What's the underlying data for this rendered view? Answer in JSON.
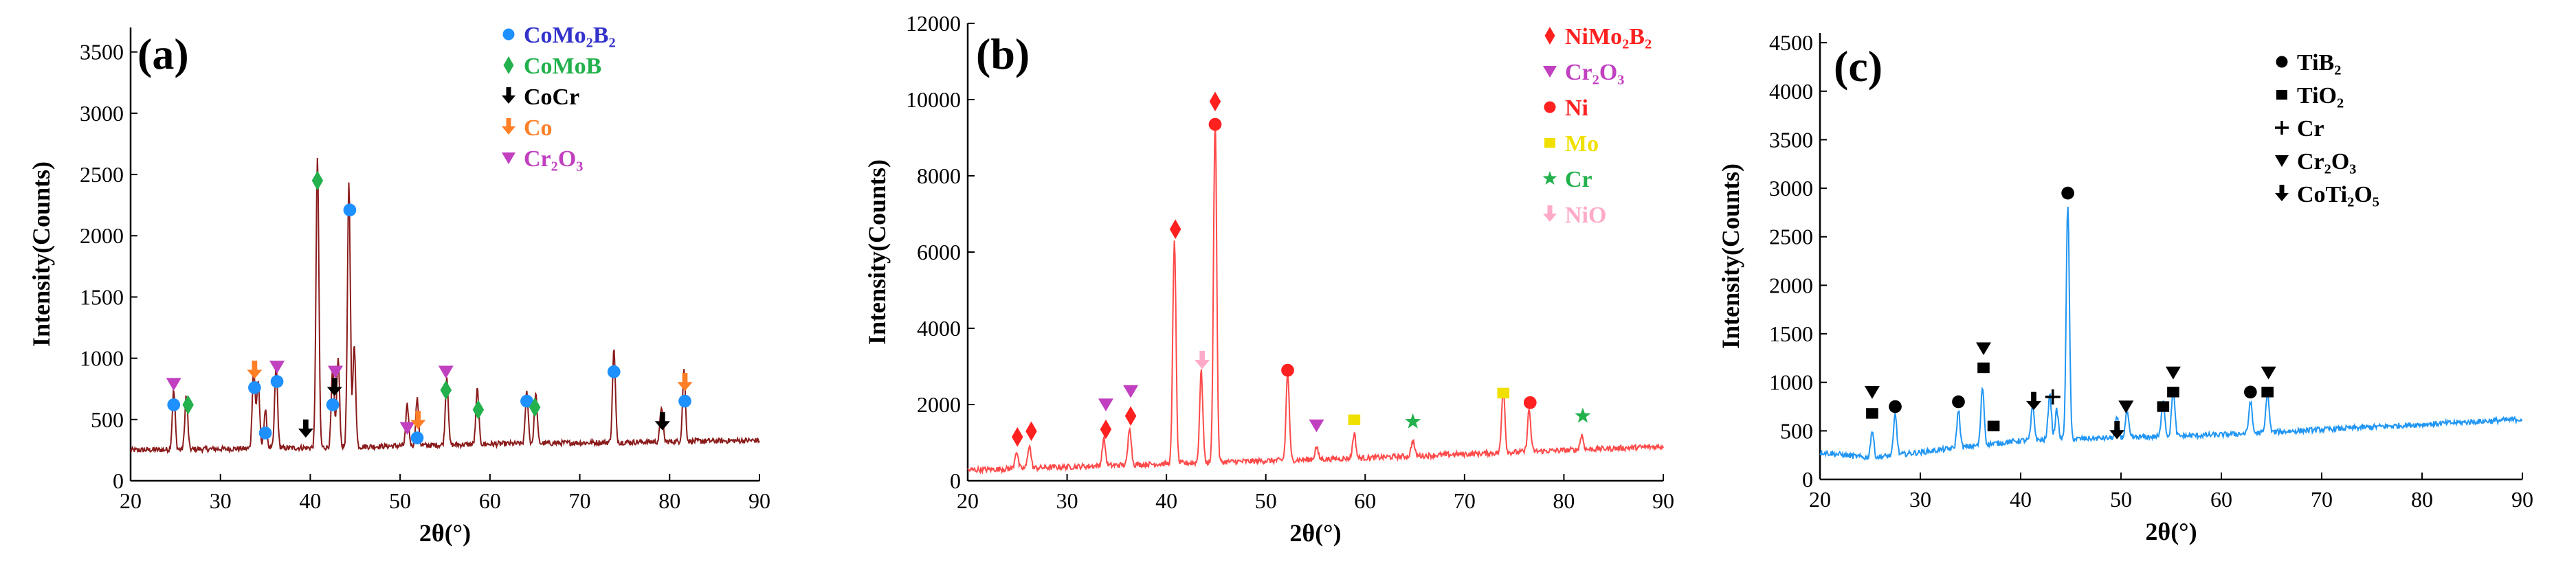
{
  "chart_data": [
    {
      "type": "line",
      "panel_label": "(a)",
      "xlabel": "2θ(°)",
      "ylabel": "Intensity(Counts)",
      "xlim": [
        20,
        90
      ],
      "ylim": [
        0,
        3700
      ],
      "xticks": [
        "20",
        "30",
        "40",
        "50",
        "60",
        "70",
        "80",
        "90"
      ],
      "yticks": [
        "0",
        "500",
        "1000",
        "1500",
        "2000",
        "2500",
        "3000",
        "3500"
      ],
      "xtick_values": [
        20,
        30,
        40,
        50,
        60,
        70,
        80,
        90
      ],
      "ytick_values": [
        0,
        500,
        1000,
        1500,
        2000,
        2500,
        3000,
        3500
      ],
      "line_color": "#8b1c1c",
      "baseline": [
        [
          20,
          250
        ],
        [
          40,
          270
        ],
        [
          60,
          300
        ],
        [
          90,
          330
        ]
      ],
      "peaks": [
        [
          24.8,
          480
        ],
        [
          26.2,
          440
        ],
        [
          33.7,
          650
        ],
        [
          34.2,
          550
        ],
        [
          35,
          310
        ],
        [
          36.2,
          680
        ],
        [
          40.8,
          2350
        ],
        [
          42.5,
          640
        ],
        [
          43.1,
          720
        ],
        [
          44.3,
          2150
        ],
        [
          44.9,
          820
        ],
        [
          50.8,
          330
        ],
        [
          51.9,
          380
        ],
        [
          55.2,
          560
        ],
        [
          58.6,
          450
        ],
        [
          64.1,
          420
        ],
        [
          65.1,
          400
        ],
        [
          73.8,
          760
        ],
        [
          79.1,
          290
        ],
        [
          81.6,
          580
        ]
      ],
      "legend": [
        {
          "label": "CoMo₂B₂",
          "color": "#1e90ff",
          "text_color": "#3333cc",
          "marker": "circle"
        },
        {
          "label": "CoMoB",
          "color": "#22b14c",
          "text_color": "#22b14c",
          "marker": "diamond"
        },
        {
          "label": "CoCr",
          "color": "#000000",
          "text_color": "#000000",
          "marker": "arrow"
        },
        {
          "label": "Co",
          "color": "#ff7f27",
          "text_color": "#ff7f27",
          "marker": "arrow"
        },
        {
          "label": "Cr₂O₃",
          "color": "#c040c0",
          "text_color": "#c040c0",
          "marker": "triangle"
        }
      ],
      "annotations": [
        {
          "x": 24.8,
          "y": 620,
          "marker": "circle",
          "color": "#1e90ff"
        },
        {
          "x": 24.8,
          "y": 790,
          "marker": "triangle",
          "color": "#c040c0"
        },
        {
          "x": 26.4,
          "y": 620,
          "marker": "diamond",
          "color": "#22b14c"
        },
        {
          "x": 33.8,
          "y": 760,
          "marker": "circle",
          "color": "#1e90ff"
        },
        {
          "x": 33.8,
          "y": 900,
          "marker": "arrow",
          "color": "#ff7f27"
        },
        {
          "x": 35.0,
          "y": 390,
          "marker": "circle",
          "color": "#1e90ff"
        },
        {
          "x": 36.3,
          "y": 810,
          "marker": "circle",
          "color": "#1e90ff"
        },
        {
          "x": 36.3,
          "y": 930,
          "marker": "triangle",
          "color": "#c040c0"
        },
        {
          "x": 39.5,
          "y": 420,
          "marker": "arrow",
          "color": "#000000"
        },
        {
          "x": 40.8,
          "y": 2450,
          "marker": "diamond",
          "color": "#22b14c"
        },
        {
          "x": 42.5,
          "y": 620,
          "marker": "circle",
          "color": "#1e90ff"
        },
        {
          "x": 42.7,
          "y": 760,
          "marker": "arrow",
          "color": "#000000"
        },
        {
          "x": 42.8,
          "y": 890,
          "marker": "triangle",
          "color": "#c040c0"
        },
        {
          "x": 44.4,
          "y": 2210,
          "marker": "circle",
          "color": "#1e90ff"
        },
        {
          "x": 50.8,
          "y": 430,
          "marker": "triangle",
          "color": "#c040c0"
        },
        {
          "x": 51.9,
          "y": 350,
          "marker": "circle",
          "color": "#1e90ff"
        },
        {
          "x": 52.0,
          "y": 490,
          "marker": "arrow",
          "color": "#ff7f27"
        },
        {
          "x": 55.1,
          "y": 740,
          "marker": "diamond",
          "color": "#22b14c"
        },
        {
          "x": 55.1,
          "y": 890,
          "marker": "triangle",
          "color": "#c040c0"
        },
        {
          "x": 58.7,
          "y": 580,
          "marker": "diamond",
          "color": "#22b14c"
        },
        {
          "x": 64.1,
          "y": 650,
          "marker": "circle",
          "color": "#1e90ff"
        },
        {
          "x": 65.0,
          "y": 600,
          "marker": "diamond",
          "color": "#22b14c"
        },
        {
          "x": 73.8,
          "y": 890,
          "marker": "circle",
          "color": "#1e90ff"
        },
        {
          "x": 79.2,
          "y": 480,
          "marker": "arrow",
          "color": "#000000"
        },
        {
          "x": 81.7,
          "y": 650,
          "marker": "circle",
          "color": "#1e90ff"
        },
        {
          "x": 81.7,
          "y": 800,
          "marker": "arrow",
          "color": "#ff7f27"
        }
      ]
    },
    {
      "type": "line",
      "panel_label": "(b)",
      "xlabel": "2θ(°)",
      "ylabel": "Intensity(Counts)",
      "xlim": [
        20,
        90
      ],
      "ylim": [
        0,
        12000
      ],
      "xticks": [
        "20",
        "30",
        "40",
        "50",
        "60",
        "70",
        "80",
        "90"
      ],
      "yticks": [
        "0",
        "2000",
        "4000",
        "6000",
        "8000",
        "10000",
        "12000"
      ],
      "xtick_values": [
        20,
        30,
        40,
        50,
        60,
        70,
        80,
        90
      ],
      "ytick_values": [
        0,
        2000,
        4000,
        6000,
        8000,
        10000,
        12000
      ],
      "line_color": "#ff4a4a",
      "baseline": [
        [
          20,
          280
        ],
        [
          40,
          450
        ],
        [
          60,
          600
        ],
        [
          90,
          900
        ]
      ],
      "peaks": [
        [
          24.9,
          450
        ],
        [
          26.2,
          600
        ],
        [
          33.7,
          700
        ],
        [
          36.3,
          1000
        ],
        [
          40.8,
          5900
        ],
        [
          43.5,
          2400
        ],
        [
          44.9,
          9000
        ],
        [
          52.2,
          2300
        ],
        [
          55.1,
          320
        ],
        [
          58.9,
          650
        ],
        [
          64.8,
          420
        ],
        [
          73.9,
          1700
        ],
        [
          76.5,
          1100
        ],
        [
          81.8,
          380
        ]
      ],
      "legend": [
        {
          "label": "NiMo₂B₂",
          "color": "#ff2020",
          "text_color": "#ff2020",
          "marker": "diamond"
        },
        {
          "label": "Cr₂O₃",
          "color": "#c040c0",
          "text_color": "#c040c0",
          "marker": "triangle"
        },
        {
          "label": "Ni",
          "color": "#ff2020",
          "text_color": "#ff2020",
          "marker": "circle"
        },
        {
          "label": "Mo",
          "color": "#f0e000",
          "text_color": "#f0e000",
          "marker": "square"
        },
        {
          "label": "Cr",
          "color": "#22b14c",
          "text_color": "#22b14c",
          "marker": "star"
        },
        {
          "label": "NiO",
          "color": "#ffaac8",
          "text_color": "#ffaac8",
          "marker": "arrow"
        }
      ],
      "annotations": [
        {
          "x": 25.0,
          "y": 1150,
          "marker": "diamond",
          "color": "#ff2020"
        },
        {
          "x": 26.4,
          "y": 1300,
          "marker": "diamond",
          "color": "#ff2020"
        },
        {
          "x": 33.9,
          "y": 1350,
          "marker": "diamond",
          "color": "#ff2020"
        },
        {
          "x": 33.9,
          "y": 2000,
          "marker": "triangle",
          "color": "#c040c0"
        },
        {
          "x": 36.4,
          "y": 1700,
          "marker": "diamond",
          "color": "#ff2020"
        },
        {
          "x": 36.4,
          "y": 2350,
          "marker": "triangle",
          "color": "#c040c0"
        },
        {
          "x": 40.9,
          "y": 6600,
          "marker": "diamond",
          "color": "#ff2020"
        },
        {
          "x": 43.6,
          "y": 3150,
          "marker": "arrow",
          "color": "#ffaac8"
        },
        {
          "x": 44.9,
          "y": 9350,
          "marker": "circle",
          "color": "#ff2020"
        },
        {
          "x": 44.9,
          "y": 9950,
          "marker": "diamond",
          "color": "#ff2020"
        },
        {
          "x": 52.2,
          "y": 2900,
          "marker": "circle",
          "color": "#ff2020"
        },
        {
          "x": 55.1,
          "y": 1450,
          "marker": "triangle",
          "color": "#c040c0"
        },
        {
          "x": 58.9,
          "y": 1600,
          "marker": "square",
          "color": "#f0e000"
        },
        {
          "x": 64.8,
          "y": 1550,
          "marker": "star",
          "color": "#22b14c"
        },
        {
          "x": 73.9,
          "y": 2300,
          "marker": "square",
          "color": "#f0e000"
        },
        {
          "x": 76.6,
          "y": 2050,
          "marker": "circle",
          "color": "#ff2020"
        },
        {
          "x": 81.9,
          "y": 1700,
          "marker": "star",
          "color": "#22b14c"
        }
      ]
    },
    {
      "type": "line",
      "panel_label": "(c)",
      "xlabel": "2θ(°)",
      "ylabel": "Intensity(Counts)",
      "xlim": [
        20,
        90
      ],
      "ylim": [
        0,
        4600
      ],
      "xticks": [
        "20",
        "30",
        "40",
        "50",
        "60",
        "70",
        "80",
        "90"
      ],
      "yticks": [
        "0",
        "500",
        "1000",
        "1500",
        "2000",
        "2500",
        "3000",
        "3500",
        "4000",
        "4500"
      ],
      "xtick_values": [
        20,
        30,
        40,
        50,
        60,
        70,
        80,
        90
      ],
      "ytick_values": [
        0,
        500,
        1000,
        1500,
        2000,
        2500,
        3000,
        3500,
        4000,
        4500
      ],
      "line_color": "#2196f3",
      "baseline": [
        [
          20,
          280
        ],
        [
          25,
          220
        ],
        [
          40,
          400
        ],
        [
          60,
          460
        ],
        [
          90,
          620
        ]
      ],
      "peaks": [
        [
          25.2,
          280
        ],
        [
          27.5,
          420
        ],
        [
          33.8,
          380
        ],
        [
          36.2,
          600
        ],
        [
          41.2,
          350
        ],
        [
          42.9,
          480
        ],
        [
          43.6,
          300
        ],
        [
          44.7,
          2400
        ],
        [
          49.6,
          200
        ],
        [
          50.6,
          260
        ],
        [
          54.2,
          380
        ],
        [
          55.2,
          480
        ],
        [
          62.9,
          330
        ],
        [
          64.6,
          420
        ]
      ],
      "legend": [
        {
          "label": "TiB₂",
          "color": "#000000",
          "text_color": "#000000",
          "marker": "circle"
        },
        {
          "label": "TiO₂",
          "color": "#000000",
          "text_color": "#000000",
          "marker": "square"
        },
        {
          "label": "Cr",
          "color": "#000000",
          "text_color": "#000000",
          "marker": "plus"
        },
        {
          "label": "Cr₂O₃",
          "color": "#000000",
          "text_color": "#000000",
          "marker": "triangle"
        },
        {
          "label": "CoTi₂O₅",
          "color": "#000000",
          "text_color": "#000000",
          "marker": "arrow"
        }
      ],
      "annotations": [
        {
          "x": 25.2,
          "y": 680,
          "marker": "square",
          "color": "#000000"
        },
        {
          "x": 25.2,
          "y": 900,
          "marker": "triangle",
          "color": "#000000"
        },
        {
          "x": 27.5,
          "y": 750,
          "marker": "circle",
          "color": "#000000"
        },
        {
          "x": 33.8,
          "y": 800,
          "marker": "circle",
          "color": "#000000"
        },
        {
          "x": 36.3,
          "y": 1150,
          "marker": "square",
          "color": "#000000"
        },
        {
          "x": 36.3,
          "y": 1350,
          "marker": "triangle",
          "color": "#000000"
        },
        {
          "x": 37.3,
          "y": 550,
          "marker": "square",
          "color": "#000000"
        },
        {
          "x": 41.3,
          "y": 800,
          "marker": "arrow",
          "color": "#000000"
        },
        {
          "x": 43.2,
          "y": 850,
          "marker": "plus",
          "color": "#000000"
        },
        {
          "x": 44.7,
          "y": 2950,
          "marker": "circle",
          "color": "#000000"
        },
        {
          "x": 49.6,
          "y": 500,
          "marker": "arrow",
          "color": "#000000"
        },
        {
          "x": 50.5,
          "y": 750,
          "marker": "triangle",
          "color": "#000000"
        },
        {
          "x": 54.2,
          "y": 750,
          "marker": "square",
          "color": "#000000"
        },
        {
          "x": 55.2,
          "y": 900,
          "marker": "square",
          "color": "#000000"
        },
        {
          "x": 55.2,
          "y": 1100,
          "marker": "triangle",
          "color": "#000000"
        },
        {
          "x": 62.9,
          "y": 900,
          "marker": "circle",
          "color": "#000000"
        },
        {
          "x": 64.6,
          "y": 900,
          "marker": "square",
          "color": "#000000"
        },
        {
          "x": 64.7,
          "y": 1100,
          "marker": "triangle",
          "color": "#000000"
        }
      ]
    }
  ]
}
